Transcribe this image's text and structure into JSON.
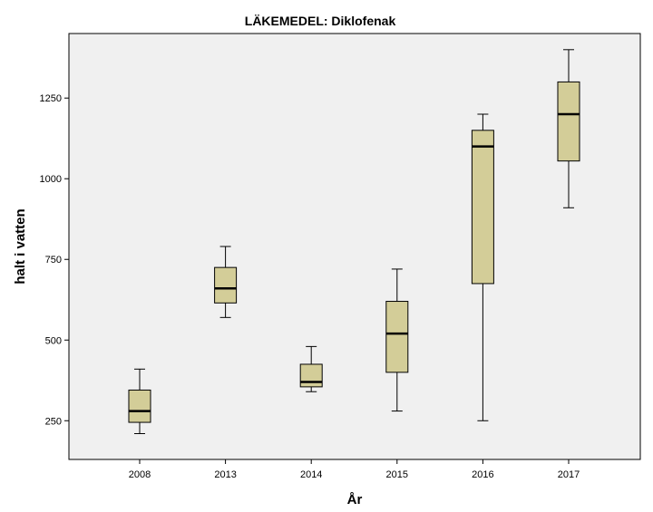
{
  "chart_data": {
    "type": "boxplot",
    "title": "LÄKEMEDEL: Diklofenak",
    "xlabel": "År",
    "ylabel": "halt i vatten",
    "ylim": [
      130,
      1450
    ],
    "yticks": [
      250,
      500,
      750,
      1000,
      1250
    ],
    "grid": false,
    "categories": [
      "2008",
      "2013",
      "2014",
      "2015",
      "2016",
      "2017"
    ],
    "boxes": [
      {
        "category": "2008",
        "min": 210,
        "q1": 245,
        "median": 280,
        "q3": 345,
        "max": 410
      },
      {
        "category": "2013",
        "min": 570,
        "q1": 615,
        "median": 660,
        "q3": 725,
        "max": 790
      },
      {
        "category": "2014",
        "min": 340,
        "q1": 355,
        "median": 370,
        "q3": 425,
        "max": 480
      },
      {
        "category": "2015",
        "min": 280,
        "q1": 400,
        "median": 520,
        "q3": 620,
        "max": 720
      },
      {
        "category": "2016",
        "min": 250,
        "q1": 675,
        "median": 1100,
        "q3": 1150,
        "max": 1200
      },
      {
        "category": "2017",
        "min": 910,
        "q1": 1055,
        "median": 1200,
        "q3": 1300,
        "max": 1400
      }
    ],
    "colors": {
      "box_fill": "#d3cd98",
      "plot_background": "#f0f0f0",
      "stroke": "#000000"
    }
  }
}
